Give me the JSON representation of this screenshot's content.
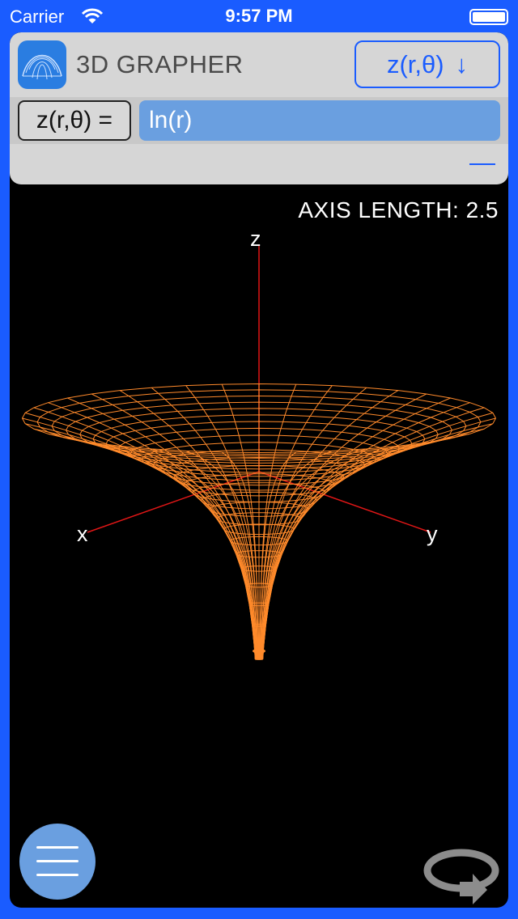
{
  "status_bar": {
    "carrier": "Carrier",
    "time": "9:57 PM"
  },
  "header": {
    "app_title": "3D GRAPHER",
    "mode_button_label": "z(r,θ)",
    "mode_button_arrow": "↓",
    "icon": "surface-plot-icon"
  },
  "equation": {
    "variable_label": "z(r,θ) =",
    "formula": "ln(r)"
  },
  "graph": {
    "axis_length_text": "AXIS LENGTH: 2.5",
    "axis_labels": {
      "x": "x",
      "y": "y",
      "z": "z"
    },
    "function": "z = ln(r)",
    "surface_color": "#ff8a2b",
    "axis_color": "#e01616"
  },
  "controls": {
    "menu_icon": "hamburger-menu-icon",
    "rotate_icon": "rotate-icon"
  },
  "colors": {
    "accent": "#1a5cff",
    "panel": "#d6d6d6",
    "input_fill": "#6a9fe0",
    "background": "#000000"
  }
}
